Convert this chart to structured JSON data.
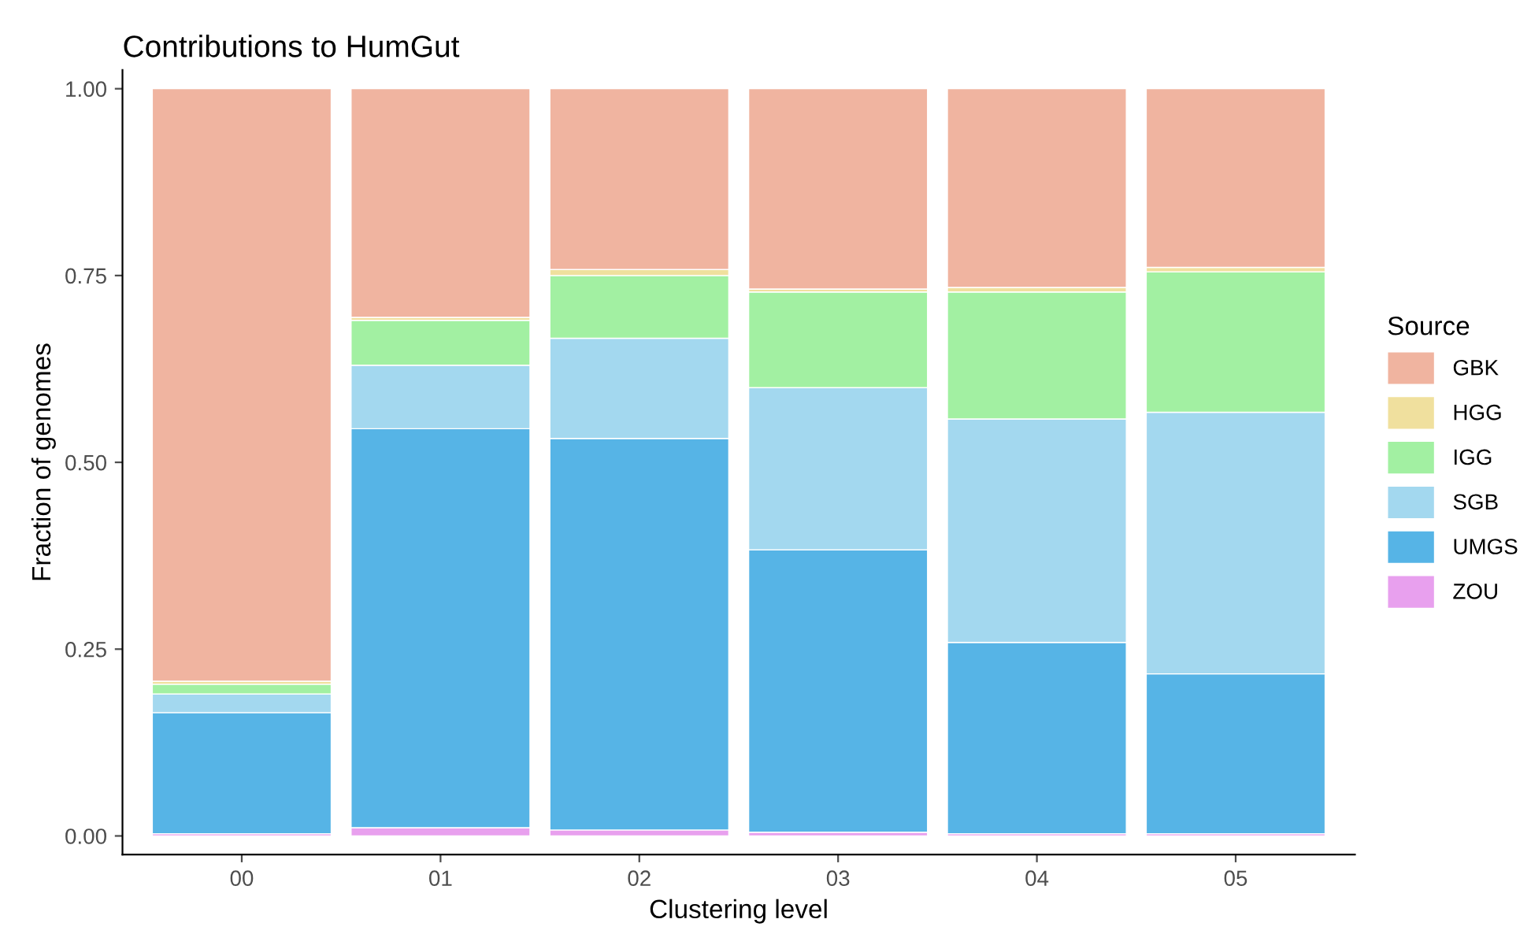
{
  "chart_data": {
    "type": "bar",
    "title": "Contributions to HumGut",
    "xlabel": "Clustering level",
    "ylabel": "Fraction of genomes",
    "legend_title": "Source",
    "categories": [
      "00",
      "01",
      "02",
      "03",
      "04",
      "05"
    ],
    "stacked": true,
    "legend": "right",
    "grid": false,
    "ylim": [
      -0.025,
      1.025
    ],
    "yticks": [
      {
        "value": 0,
        "label": "0.00"
      },
      {
        "value": 0.25,
        "label": "0.25"
      },
      {
        "value": 0.5,
        "label": "0.50"
      },
      {
        "value": 0.75,
        "label": "0.75"
      },
      {
        "value": 1,
        "label": "1.00"
      }
    ],
    "series": [
      {
        "name": "ZOU",
        "color": "#e8a0ee",
        "values": [
          0.003,
          0.011,
          0.008,
          0.005,
          0.003,
          0.003
        ]
      },
      {
        "name": "UMGS",
        "color": "#56b4e6",
        "values": [
          0.162,
          0.534,
          0.524,
          0.378,
          0.256,
          0.214
        ]
      },
      {
        "name": "SGB",
        "color": "#a3d8ef",
        "values": [
          0.025,
          0.085,
          0.134,
          0.217,
          0.299,
          0.35
        ]
      },
      {
        "name": "IGG",
        "color": "#a2f0a2",
        "values": [
          0.013,
          0.06,
          0.084,
          0.128,
          0.17,
          0.188
        ]
      },
      {
        "name": "HGG",
        "color": "#f0e09e",
        "values": [
          0.004,
          0.004,
          0.008,
          0.004,
          0.006,
          0.006
        ]
      },
      {
        "name": "GBK",
        "color": "#f0b4a0",
        "values": [
          0.793,
          0.306,
          0.242,
          0.268,
          0.266,
          0.239
        ]
      }
    ]
  }
}
